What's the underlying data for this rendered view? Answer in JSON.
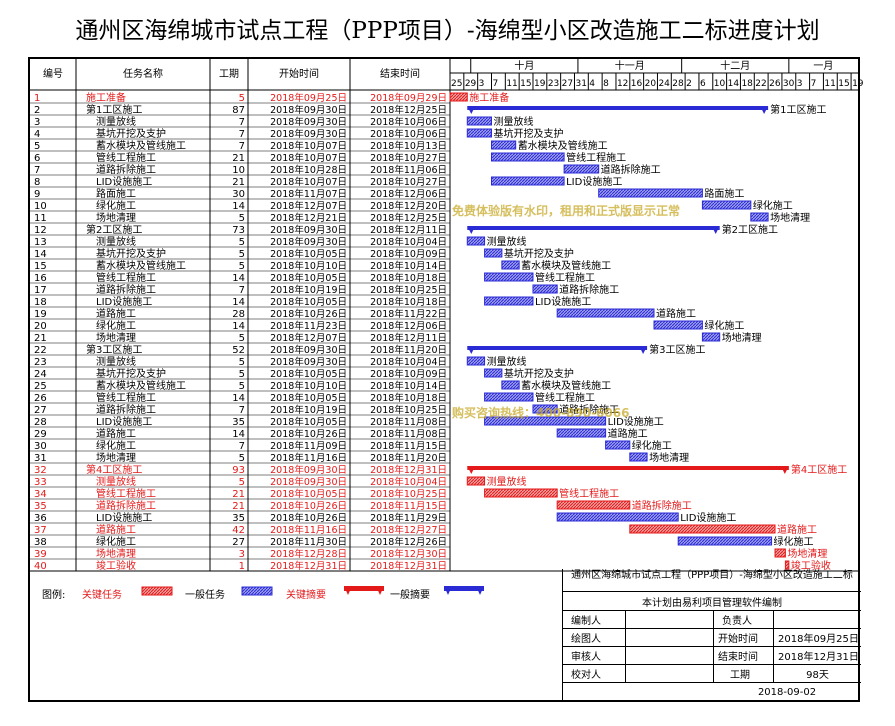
{
  "title": "通州区海绵城市试点工程（PPP项目）-海绵型小区改造施工二标进度计划",
  "headers": {
    "id": "编号",
    "name": "任务名称",
    "dur": "工期",
    "start": "开始时间",
    "end": "结束时间"
  },
  "months": [
    "十月",
    "十一月",
    "十二月",
    "一月"
  ],
  "day_ticks": [
    "25",
    "29",
    "3",
    "7",
    "11",
    "15",
    "19",
    "23",
    "27",
    "31",
    "4",
    "8",
    "12",
    "16",
    "20",
    "24",
    "28",
    "2",
    "6",
    "10",
    "14",
    "18",
    "22",
    "26",
    "30",
    "3",
    "7",
    "11",
    "15",
    "19"
  ],
  "colors": {
    "critical": "#e41a1a",
    "normal": "#2b2bd6",
    "critical_text": "#e41a1a",
    "normal_text": "#000000",
    "grid": "#000000"
  },
  "watermark": {
    "line1": "免费体验版有水印，租用和正式版显示正常",
    "line2": "购买咨询热线：400-890-6066"
  },
  "chart_data": {
    "type": "gantt",
    "title": "通州区海绵城市试点工程（PPP项目）-海绵型小区改造施工二标进度计划",
    "x_axis": {
      "start": "2018-09-25",
      "end": "2019-01-21",
      "unit": "day"
    },
    "tasks": [
      {
        "id": "1",
        "name": "施工准备",
        "dur": "5",
        "start": "2018年09月25日",
        "end": "2018年09月29日",
        "s": "2018-09-25",
        "e": "2018-09-29",
        "level": 0,
        "kind": "critical",
        "label": "施工准备"
      },
      {
        "id": "2",
        "name": "第1工区施工",
        "dur": "87",
        "start": "2018年09月30日",
        "end": "2018年12月25日",
        "s": "2018-09-30",
        "e": "2018-12-25",
        "level": 0,
        "kind": "summary",
        "label": "第1工区施工"
      },
      {
        "id": "3",
        "name": "测量放线",
        "dur": "7",
        "start": "2018年09月30日",
        "end": "2018年10月06日",
        "s": "2018-09-30",
        "e": "2018-10-06",
        "level": 1,
        "kind": "normal",
        "label": "测量放线"
      },
      {
        "id": "4",
        "name": "基坑开挖及支护",
        "dur": "7",
        "start": "2018年09月30日",
        "end": "2018年10月06日",
        "s": "2018-09-30",
        "e": "2018-10-06",
        "level": 1,
        "kind": "normal",
        "label": "基坑开挖及支护"
      },
      {
        "id": "5",
        "name": "蓄水模块及管线施工",
        "dur": "7",
        "start": "2018年10月07日",
        "end": "2018年10月13日",
        "s": "2018-10-07",
        "e": "2018-10-13",
        "level": 1,
        "kind": "normal",
        "label": "蓄水模块及管线施工"
      },
      {
        "id": "6",
        "name": "管线工程施工",
        "dur": "21",
        "start": "2018年10月07日",
        "end": "2018年10月27日",
        "s": "2018-10-07",
        "e": "2018-10-27",
        "level": 1,
        "kind": "normal",
        "label": "管线工程施工"
      },
      {
        "id": "7",
        "name": "道路拆除施工",
        "dur": "10",
        "start": "2018年10月28日",
        "end": "2018年11月06日",
        "s": "2018-10-28",
        "e": "2018-11-06",
        "level": 1,
        "kind": "normal",
        "label": "道路拆除施工"
      },
      {
        "id": "8",
        "name": "LID设施施工",
        "dur": "21",
        "start": "2018年10月07日",
        "end": "2018年10月27日",
        "s": "2018-10-07",
        "e": "2018-10-27",
        "level": 1,
        "kind": "normal",
        "label": "LID设施施工"
      },
      {
        "id": "9",
        "name": "路面施工",
        "dur": "30",
        "start": "2018年11月07日",
        "end": "2018年12月06日",
        "s": "2018-11-07",
        "e": "2018-12-06",
        "level": 1,
        "kind": "normal",
        "label": "路面施工"
      },
      {
        "id": "10",
        "name": "绿化施工",
        "dur": "14",
        "start": "2018年12月07日",
        "end": "2018年12月20日",
        "s": "2018-12-07",
        "e": "2018-12-20",
        "level": 1,
        "kind": "normal",
        "label": "绿化施工"
      },
      {
        "id": "11",
        "name": "场地清理",
        "dur": "5",
        "start": "2018年12月21日",
        "end": "2018年12月25日",
        "s": "2018-12-21",
        "e": "2018-12-25",
        "level": 1,
        "kind": "normal",
        "label": "场地清理"
      },
      {
        "id": "12",
        "name": "第2工区施工",
        "dur": "73",
        "start": "2018年09月30日",
        "end": "2018年12月11日",
        "s": "2018-09-30",
        "e": "2018-12-11",
        "level": 0,
        "kind": "summary",
        "label": "第2工区施工"
      },
      {
        "id": "13",
        "name": "测量放线",
        "dur": "5",
        "start": "2018年09月30日",
        "end": "2018年10月04日",
        "s": "2018-09-30",
        "e": "2018-10-04",
        "level": 1,
        "kind": "normal",
        "label": "测量放线"
      },
      {
        "id": "14",
        "name": "基坑开挖及支护",
        "dur": "5",
        "start": "2018年10月05日",
        "end": "2018年10月09日",
        "s": "2018-10-05",
        "e": "2018-10-09",
        "level": 1,
        "kind": "normal",
        "label": "基坑开挖及支护"
      },
      {
        "id": "15",
        "name": "蓄水模块及管线施工",
        "dur": "5",
        "start": "2018年10月10日",
        "end": "2018年10月14日",
        "s": "2018-10-10",
        "e": "2018-10-14",
        "level": 1,
        "kind": "normal",
        "label": "蓄水模块及管线施工"
      },
      {
        "id": "16",
        "name": "管线工程施工",
        "dur": "14",
        "start": "2018年10月05日",
        "end": "2018年10月18日",
        "s": "2018-10-05",
        "e": "2018-10-18",
        "level": 1,
        "kind": "normal",
        "label": "管线工程施工"
      },
      {
        "id": "17",
        "name": "道路拆除施工",
        "dur": "7",
        "start": "2018年10月19日",
        "end": "2018年10月25日",
        "s": "2018-10-19",
        "e": "2018-10-25",
        "level": 1,
        "kind": "normal",
        "label": "道路拆除施工"
      },
      {
        "id": "18",
        "name": "LID设施施工",
        "dur": "14",
        "start": "2018年10月05日",
        "end": "2018年10月18日",
        "s": "2018-10-05",
        "e": "2018-10-18",
        "level": 1,
        "kind": "normal",
        "label": "LID设施施工"
      },
      {
        "id": "19",
        "name": "道路施工",
        "dur": "28",
        "start": "2018年10月26日",
        "end": "2018年11月22日",
        "s": "2018-10-26",
        "e": "2018-11-22",
        "level": 1,
        "kind": "normal",
        "label": "道路施工"
      },
      {
        "id": "20",
        "name": "绿化施工",
        "dur": "14",
        "start": "2018年11月23日",
        "end": "2018年12月06日",
        "s": "2018-11-23",
        "e": "2018-12-06",
        "level": 1,
        "kind": "normal",
        "label": "绿化施工"
      },
      {
        "id": "21",
        "name": "场地清理",
        "dur": "5",
        "start": "2018年12月07日",
        "end": "2018年12月11日",
        "s": "2018-12-07",
        "e": "2018-12-11",
        "level": 1,
        "kind": "normal",
        "label": "场地清理"
      },
      {
        "id": "22",
        "name": "第3工区施工",
        "dur": "52",
        "start": "2018年09月30日",
        "end": "2018年11月20日",
        "s": "2018-09-30",
        "e": "2018-11-20",
        "level": 0,
        "kind": "summary",
        "label": "第3工区施工"
      },
      {
        "id": "23",
        "name": "测量放线",
        "dur": "5",
        "start": "2018年09月30日",
        "end": "2018年10月04日",
        "s": "2018-09-30",
        "e": "2018-10-04",
        "level": 1,
        "kind": "normal",
        "label": "测量放线"
      },
      {
        "id": "24",
        "name": "基坑开挖及支护",
        "dur": "5",
        "start": "2018年10月05日",
        "end": "2018年10月09日",
        "s": "2018-10-05",
        "e": "2018-10-09",
        "level": 1,
        "kind": "normal",
        "label": "基坑开挖及支护"
      },
      {
        "id": "25",
        "name": "蓄水模块及管线施工",
        "dur": "5",
        "start": "2018年10月10日",
        "end": "2018年10月14日",
        "s": "2018-10-10",
        "e": "2018-10-14",
        "level": 1,
        "kind": "normal",
        "label": "蓄水模块及管线施工"
      },
      {
        "id": "26",
        "name": "管线工程施工",
        "dur": "14",
        "start": "2018年10月05日",
        "end": "2018年10月18日",
        "s": "2018-10-05",
        "e": "2018-10-18",
        "level": 1,
        "kind": "normal",
        "label": "管线工程施工"
      },
      {
        "id": "27",
        "name": "道路拆除施工",
        "dur": "7",
        "start": "2018年10月19日",
        "end": "2018年10月25日",
        "s": "2018-10-19",
        "e": "2018-10-25",
        "level": 1,
        "kind": "normal",
        "label": "道路拆除施工"
      },
      {
        "id": "28",
        "name": "LID设施施工",
        "dur": "35",
        "start": "2018年10月05日",
        "end": "2018年11月08日",
        "s": "2018-10-05",
        "e": "2018-11-08",
        "level": 1,
        "kind": "normal",
        "label": "LID设施施工"
      },
      {
        "id": "29",
        "name": "道路施工",
        "dur": "14",
        "start": "2018年10月26日",
        "end": "2018年11月08日",
        "s": "2018-10-26",
        "e": "2018-11-08",
        "level": 1,
        "kind": "normal",
        "label": "道路施工"
      },
      {
        "id": "30",
        "name": "绿化施工",
        "dur": "7",
        "start": "2018年11月09日",
        "end": "2018年11月15日",
        "s": "2018-11-09",
        "e": "2018-11-15",
        "level": 1,
        "kind": "normal",
        "label": "绿化施工"
      },
      {
        "id": "31",
        "name": "场地清理",
        "dur": "5",
        "start": "2018年11月16日",
        "end": "2018年11月20日",
        "s": "2018-11-16",
        "e": "2018-11-20",
        "level": 1,
        "kind": "normal",
        "label": "场地清理"
      },
      {
        "id": "32",
        "name": "第4工区施工",
        "dur": "93",
        "start": "2018年09月30日",
        "end": "2018年12月31日",
        "s": "2018-09-30",
        "e": "2018-12-31",
        "level": 0,
        "kind": "critical-summary",
        "label": "第4工区施工"
      },
      {
        "id": "33",
        "name": "测量放线",
        "dur": "5",
        "start": "2018年09月30日",
        "end": "2018年10月04日",
        "s": "2018-09-30",
        "e": "2018-10-04",
        "level": 1,
        "kind": "critical",
        "label": "测量放线"
      },
      {
        "id": "34",
        "name": "管线工程施工",
        "dur": "21",
        "start": "2018年10月05日",
        "end": "2018年10月25日",
        "s": "2018-10-05",
        "e": "2018-10-25",
        "level": 1,
        "kind": "critical",
        "label": "管线工程施工"
      },
      {
        "id": "35",
        "name": "道路拆除施工",
        "dur": "21",
        "start": "2018年10月26日",
        "end": "2018年11月15日",
        "s": "2018-10-26",
        "e": "2018-11-15",
        "level": 1,
        "kind": "critical",
        "label": "道路拆除施工"
      },
      {
        "id": "36",
        "name": "LID设施施工",
        "dur": "35",
        "start": "2018年10月26日",
        "end": "2018年11月29日",
        "s": "2018-10-26",
        "e": "2018-11-29",
        "level": 1,
        "kind": "normal",
        "label": "LID设施施工"
      },
      {
        "id": "37",
        "name": "道路施工",
        "dur": "42",
        "start": "2018年11月16日",
        "end": "2018年12月27日",
        "s": "2018-11-16",
        "e": "2018-12-27",
        "level": 1,
        "kind": "critical",
        "label": "道路施工"
      },
      {
        "id": "38",
        "name": "绿化施工",
        "dur": "27",
        "start": "2018年11月30日",
        "end": "2018年12月26日",
        "s": "2018-11-30",
        "e": "2018-12-26",
        "level": 1,
        "kind": "normal",
        "label": "绿化施工"
      },
      {
        "id": "39",
        "name": "场地清理",
        "dur": "3",
        "start": "2018年12月28日",
        "end": "2018年12月30日",
        "s": "2018-12-28",
        "e": "2018-12-30",
        "level": 1,
        "kind": "critical",
        "label": "场地清理"
      },
      {
        "id": "40",
        "name": "竣工验收",
        "dur": "1",
        "start": "2018年12月31日",
        "end": "2018年12月31日",
        "s": "2018-12-31",
        "e": "2018-12-31",
        "level": 1,
        "kind": "critical",
        "label": "竣工验收"
      }
    ]
  },
  "legend": {
    "title": "图例:",
    "critical_task": "关键任务",
    "normal_task": "一般任务",
    "critical_summary": "关键摘要",
    "normal_summary": "一般摘要"
  },
  "info": {
    "project_title": "通州区海绵城市试点工程（PPP项目）-海绵型小区改造施工二标",
    "software_note": "本计划由易利项目管理软件编制",
    "editor_label": "编制人",
    "editor_value": "",
    "owner_label": "负责人",
    "owner_value": "",
    "drawer_label": "绘图人",
    "drawer_value": "",
    "start_label": "开始时间",
    "start_value": "2018年09月25日",
    "reviewer_label": "审核人",
    "reviewer_value": "",
    "end_label": "结束时间",
    "end_value": "2018年12月31日",
    "checker_label": "校对人",
    "checker_value": "",
    "duration_label": "工期",
    "duration_value": "98天",
    "print_date": "2018-09-02"
  }
}
